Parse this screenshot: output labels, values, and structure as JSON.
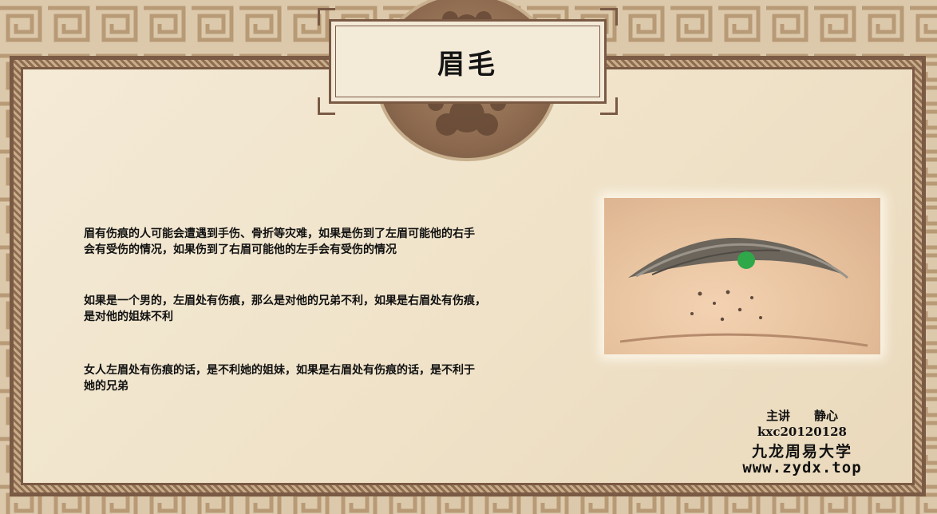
{
  "slide": {
    "title": "眉毛",
    "paragraphs": [
      {
        "line1": "眉有伤痕的人可能会遭遇到手伤、骨折等灾难，如果是伤到了左眉可能他的右手",
        "line2": "会有受伤的情况，如果伤到了右眉可能他的左手会有受伤的情况"
      },
      {
        "line1": "如果是一个男的，左眉处有伤痕，那么是对他的兄弟不利，如果是右眉处有伤痕，",
        "line2": "是对他的姐妹不利"
      },
      {
        "line1": "女人左眉处有伤痕的话，是不利她的姐妹，如果是右眉处有伤痕的话，是不利于",
        "line2": "她的兄弟"
      }
    ],
    "photo_alt": "eyebrow-scar-photo",
    "footer": {
      "lecturer": "主讲　　静心",
      "id": "kxc20120128",
      "org": "九龙周易大学",
      "site": "www.zydx.top"
    }
  },
  "colors": {
    "frame_brown": "#7a5a44",
    "paper": "#f4ead6",
    "text": "#111111"
  }
}
